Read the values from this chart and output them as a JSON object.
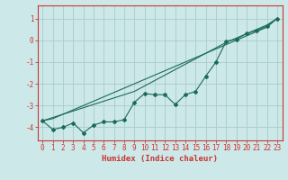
{
  "xlabel": "Humidex (Indice chaleur)",
  "ylabel": "",
  "x_values": [
    0,
    1,
    2,
    3,
    4,
    5,
    6,
    7,
    8,
    9,
    10,
    11,
    12,
    13,
    14,
    15,
    16,
    17,
    18,
    19,
    20,
    21,
    22,
    23
  ],
  "line1_y": [
    -3.7,
    -4.1,
    -4.0,
    -3.8,
    -4.25,
    -3.9,
    -3.75,
    -3.75,
    -3.65,
    -2.85,
    -2.45,
    -2.5,
    -2.5,
    -2.95,
    -2.5,
    -2.35,
    -1.65,
    -1.0,
    -0.05,
    0.05,
    0.3,
    0.45,
    0.65,
    1.0
  ],
  "line2_y": [
    -3.7,
    -3.6,
    -3.4,
    -3.2,
    -3.0,
    -2.8,
    -2.6,
    -2.4,
    -2.2,
    -2.0,
    -1.8,
    -1.6,
    -1.4,
    -1.2,
    -1.0,
    -0.8,
    -0.6,
    -0.4,
    -0.2,
    0.0,
    0.2,
    0.4,
    0.6,
    1.0
  ],
  "line3_y": [
    -3.7,
    -3.55,
    -3.4,
    -3.25,
    -3.1,
    -2.95,
    -2.8,
    -2.65,
    -2.5,
    -2.35,
    -2.1,
    -1.85,
    -1.6,
    -1.35,
    -1.1,
    -0.85,
    -0.6,
    -0.35,
    -0.1,
    0.1,
    0.3,
    0.5,
    0.7,
    1.0
  ],
  "line_color": "#1a6b5a",
  "marker_color": "#1a6b5a",
  "bg_color": "#cce8e8",
  "grid_color": "#aacccc",
  "axis_color": "#cc3333",
  "xlim": [
    -0.5,
    23.5
  ],
  "ylim": [
    -4.6,
    1.6
  ],
  "yticks": [
    -4,
    -3,
    -2,
    -1,
    0,
    1
  ],
  "xticks": [
    0,
    1,
    2,
    3,
    4,
    5,
    6,
    7,
    8,
    9,
    10,
    11,
    12,
    13,
    14,
    15,
    16,
    17,
    18,
    19,
    20,
    21,
    22,
    23
  ],
  "tick_fontsize": 5.5,
  "label_fontsize": 6.5
}
